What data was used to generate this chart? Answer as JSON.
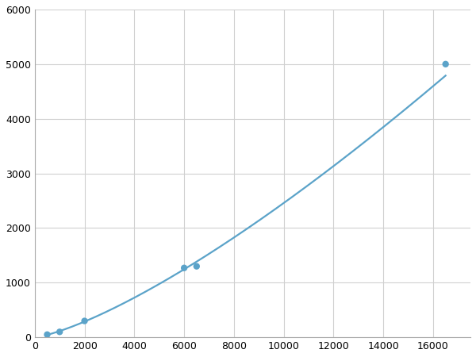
{
  "x_data": [
    500,
    1000,
    2000,
    6000,
    6500,
    16500
  ],
  "y_data": [
    50,
    100,
    300,
    1270,
    1300,
    5000
  ],
  "line_color": "#5ba3c9",
  "marker_color": "#5ba3c9",
  "marker_size": 6,
  "line_width": 1.6,
  "xlim": [
    0,
    17500
  ],
  "ylim": [
    0,
    6000
  ],
  "xticks": [
    0,
    2000,
    4000,
    6000,
    8000,
    10000,
    12000,
    14000,
    16000
  ],
  "yticks": [
    0,
    1000,
    2000,
    3000,
    4000,
    5000,
    6000
  ],
  "grid_color": "#d0d0d0",
  "background_color": "#ffffff",
  "tick_fontsize": 9
}
